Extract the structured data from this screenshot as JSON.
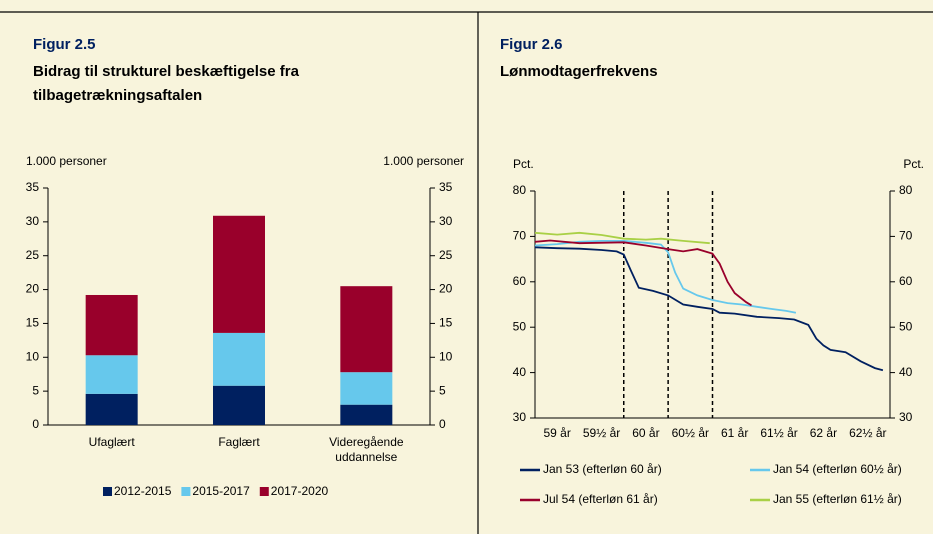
{
  "chart_data": [
    {
      "type": "bar",
      "stacked": true,
      "figure_label": "Figur 2.5",
      "title": "Bidrag til strukturel beskæftigelse fra tilbagetrækningsaftalen",
      "ylabel": "1.000 personer",
      "y2label": "1.000 personer",
      "categories": [
        "Ufaglært",
        "Faglært",
        "Videregående uddannelse"
      ],
      "series": [
        {
          "name": "2012-2015",
          "color": "#002060",
          "values": [
            4.6,
            5.8,
            3.0
          ]
        },
        {
          "name": "2015-2017",
          "color": "#66c8ec",
          "values": [
            5.7,
            7.8,
            4.8
          ]
        },
        {
          "name": "2017-2020",
          "color": "#99002b",
          "values": [
            8.9,
            17.3,
            12.7
          ]
        }
      ],
      "ylim": [
        0,
        35
      ],
      "yticks": [
        0,
        5,
        10,
        15,
        20,
        25,
        30,
        35
      ],
      "y2lim": [
        0,
        35
      ],
      "y2ticks": [
        0,
        5,
        10,
        15,
        20,
        25,
        30,
        35
      ],
      "legend": "bottom"
    },
    {
      "type": "line",
      "figure_label": "Figur 2.6",
      "title": "Lønmodtagerfrekvens",
      "ylabel": "Pct.",
      "y2label": "Pct.",
      "xlim": [
        59,
        63
      ],
      "xticks": [
        {
          "value": 59.25,
          "label": "59 år"
        },
        {
          "value": 59.75,
          "label": "59½ år"
        },
        {
          "value": 60.25,
          "label": "60 år"
        },
        {
          "value": 60.75,
          "label": "60½ år"
        },
        {
          "value": 61.25,
          "label": "61 år"
        },
        {
          "value": 61.75,
          "label": "61½ år"
        },
        {
          "value": 62.25,
          "label": "62 år"
        },
        {
          "value": 62.75,
          "label": "62½ år"
        }
      ],
      "vlines": [
        60,
        60.5,
        61
      ],
      "ylim": [
        30,
        80
      ],
      "yticks": [
        30,
        40,
        50,
        60,
        70,
        80
      ],
      "y2lim": [
        30,
        80
      ],
      "y2ticks": [
        30,
        40,
        50,
        60,
        70,
        80
      ],
      "series": [
        {
          "name": "Jan 53 (efterløn 60 år)",
          "color": "#002060",
          "x": [
            59,
            59.25,
            59.5,
            59.75,
            59.92,
            60,
            60.08,
            60.17,
            60.33,
            60.5,
            60.67,
            60.83,
            61,
            61.08,
            61.25,
            61.5,
            61.75,
            61.92,
            62.08,
            62.17,
            62.25,
            62.33,
            62.5,
            62.67,
            62.83,
            62.92
          ],
          "values": [
            67.6,
            67.4,
            67.3,
            67,
            66.7,
            66,
            62.5,
            58.7,
            58,
            57,
            55,
            54.5,
            54,
            53.2,
            53,
            52.3,
            52,
            51.7,
            50.5,
            47.5,
            46,
            45,
            44.5,
            42.5,
            41,
            40.5
          ]
        },
        {
          "name": "Jan 54 (efterløn 60½ år)",
          "color": "#66c8ec",
          "x": [
            59,
            59.25,
            59.5,
            59.75,
            60,
            60.25,
            60.42,
            60.5,
            60.58,
            60.67,
            60.83,
            61,
            61.17,
            61.33,
            61.5,
            61.67,
            61.83,
            61.94
          ],
          "values": [
            68,
            68.3,
            68.8,
            69,
            69,
            68.6,
            68.2,
            66.5,
            62,
            58.5,
            57,
            56,
            55.3,
            55,
            54.5,
            54,
            53.6,
            53.2
          ]
        },
        {
          "name": "Jul 54 (efterløn 61 år)",
          "color": "#99002b",
          "x": [
            59,
            59.17,
            59.5,
            60,
            60.25,
            60.5,
            60.67,
            60.83,
            61,
            61.08,
            61.17,
            61.25,
            61.38,
            61.44
          ],
          "values": [
            68.8,
            69.1,
            68.5,
            68.7,
            68,
            67.2,
            66.7,
            67.2,
            66.2,
            64,
            60,
            57.5,
            55.5,
            54.8
          ]
        },
        {
          "name": "Jan 55 (efterløn 61½ år)",
          "color": "#a9d046",
          "x": [
            59,
            59.25,
            59.5,
            59.75,
            60,
            60.25,
            60.42,
            60.67,
            60.97
          ],
          "values": [
            70.8,
            70.4,
            70.8,
            70.3,
            69.5,
            69.3,
            69.5,
            69,
            68.5
          ]
        }
      ],
      "legend": "bottom"
    }
  ]
}
